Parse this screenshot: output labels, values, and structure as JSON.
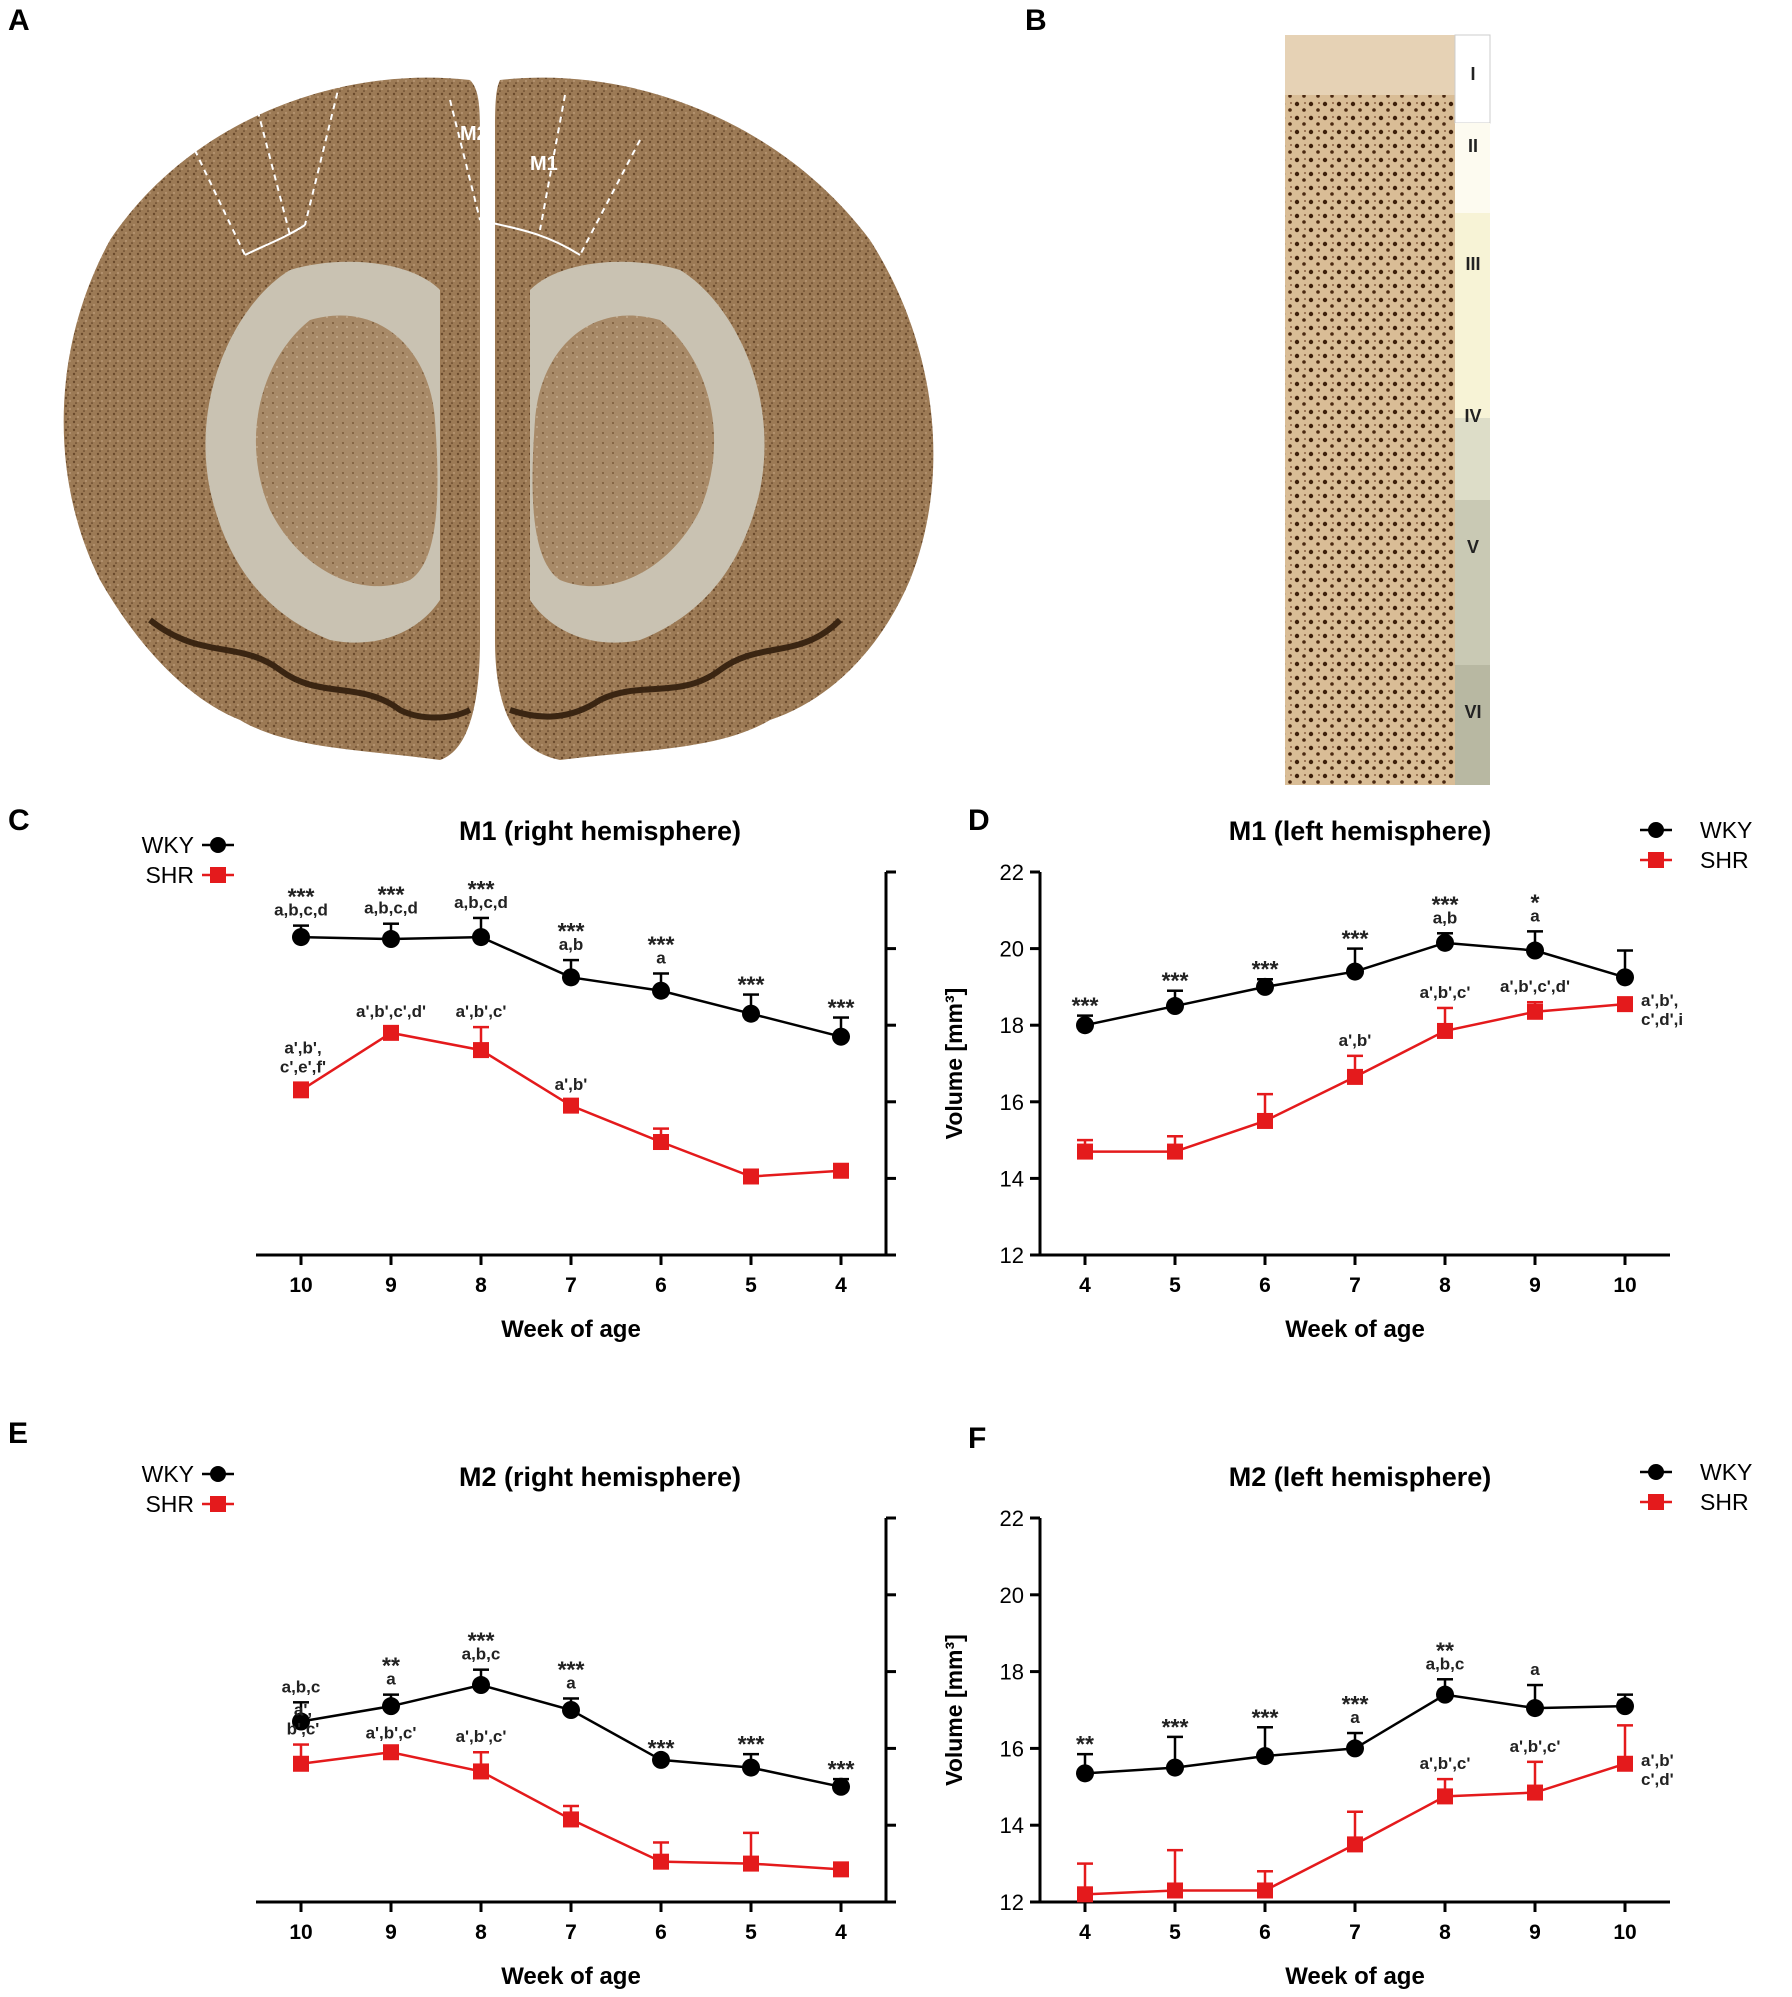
{
  "panels": {
    "a": "A",
    "b": "B",
    "c": "C",
    "d": "D",
    "e": "E",
    "f": "F"
  },
  "image_a": {
    "labels": {
      "m2": "M2",
      "m1": "M1"
    }
  },
  "image_b": {
    "layers": [
      "I",
      "II",
      "III",
      "IV",
      "V",
      "VI"
    ]
  },
  "colors": {
    "wky": "#000000",
    "shr": "#e41a1c"
  },
  "chart_data": [
    {
      "id": "c",
      "type": "line",
      "title": "M1 (right hemisphere)",
      "xlabel": "Week of age",
      "ylabel": "",
      "y_axis_side": "right",
      "categories": [
        "10",
        "9",
        "8",
        "7",
        "6",
        "5",
        "4"
      ],
      "ylim": [
        12,
        22
      ],
      "yticks": [
        12,
        14,
        16,
        18,
        20,
        22
      ],
      "legend": "top-left",
      "series": [
        {
          "name": "WKY",
          "marker": "circle",
          "values": [
            20.3,
            20.25,
            20.3,
            19.25,
            18.9,
            18.3,
            17.7
          ],
          "errors": [
            0.3,
            0.4,
            0.5,
            0.45,
            0.45,
            0.5,
            0.5
          ],
          "annotations": [
            [
              "***",
              "a,b,c,d"
            ],
            [
              "***",
              "a,b,c,d"
            ],
            [
              "***",
              "a,b,c,d"
            ],
            [
              "***",
              "a,b"
            ],
            [
              "***",
              "a"
            ],
            [
              "***"
            ],
            [
              "***"
            ]
          ]
        },
        {
          "name": "SHR",
          "marker": "square",
          "values": [
            16.3,
            17.8,
            17.35,
            15.9,
            14.95,
            14.05,
            14.2
          ],
          "errors": [
            0.2,
            0.15,
            0.6,
            0.15,
            0.35,
            0.05,
            0.05
          ],
          "annotations": [
            [
              "a',b',",
              "c',e',f'"
            ],
            [
              "a',b',c',d'"
            ],
            [
              "a',b',c'"
            ],
            [
              "a',b'"
            ],
            [],
            [],
            []
          ]
        }
      ]
    },
    {
      "id": "d",
      "type": "line",
      "title": "M1 (left hemisphere)",
      "xlabel": "Week of age",
      "ylabel": "Volume [mm³]",
      "y_axis_side": "left",
      "categories": [
        "4",
        "5",
        "6",
        "7",
        "8",
        "9",
        "10"
      ],
      "ylim": [
        12,
        22
      ],
      "yticks": [
        12,
        14,
        16,
        18,
        20,
        22
      ],
      "legend": "top-right",
      "series": [
        {
          "name": "WKY",
          "marker": "circle",
          "values": [
            18.0,
            18.5,
            19.0,
            19.4,
            20.15,
            19.95,
            19.25
          ],
          "errors": [
            0.25,
            0.4,
            0.2,
            0.6,
            0.25,
            0.5,
            0.7
          ],
          "annotations": [
            [
              "***"
            ],
            [
              "***"
            ],
            [
              "***"
            ],
            [
              "***"
            ],
            [
              "***",
              "a,b"
            ],
            [
              "*",
              "a"
            ],
            []
          ]
        },
        {
          "name": "SHR",
          "marker": "square",
          "values": [
            14.7,
            14.7,
            15.5,
            16.65,
            17.85,
            18.35,
            18.55
          ],
          "errors": [
            0.3,
            0.4,
            0.7,
            0.55,
            0.6,
            0.25,
            0.1
          ],
          "annotations": [
            [],
            [],
            [],
            [
              "a',b'"
            ],
            [
              "a',b',c'"
            ],
            [
              "a',b',c',d'"
            ],
            [
              "a',b',",
              "c',d',i"
            ]
          ]
        }
      ]
    },
    {
      "id": "e",
      "type": "line",
      "title": "M2 (right hemisphere)",
      "xlabel": "Week of age",
      "ylabel": "",
      "y_axis_side": "right",
      "categories": [
        "10",
        "9",
        "8",
        "7",
        "6",
        "5",
        "4"
      ],
      "ylim": [
        12,
        22
      ],
      "yticks": [
        12,
        14,
        16,
        18,
        20,
        22
      ],
      "legend": "top-left",
      "series": [
        {
          "name": "WKY",
          "marker": "circle",
          "values": [
            16.7,
            17.1,
            17.65,
            17.0,
            15.7,
            15.5,
            15.0
          ],
          "errors": [
            0.5,
            0.3,
            0.4,
            0.3,
            0.05,
            0.35,
            0.2
          ],
          "annotations": [
            [
              "a,b,c"
            ],
            [
              "**",
              "a"
            ],
            [
              "***",
              "a,b,c"
            ],
            [
              "***",
              "a"
            ],
            [
              "***"
            ],
            [
              "***"
            ],
            [
              "***"
            ]
          ]
        },
        {
          "name": "SHR",
          "marker": "square",
          "values": [
            15.6,
            15.9,
            15.4,
            14.15,
            13.05,
            13.0,
            12.85
          ],
          "errors": [
            0.5,
            0.1,
            0.5,
            0.35,
            0.5,
            0.8,
            0.05
          ],
          "annotations": [
            [
              "a',",
              "b',c'"
            ],
            [
              "a',b',c'"
            ],
            [
              "a',b',c'"
            ],
            [],
            [],
            [],
            []
          ]
        }
      ]
    },
    {
      "id": "f",
      "type": "line",
      "title": "M2 (left hemisphere)",
      "xlabel": "Week of age",
      "ylabel": "Volume [mm³]",
      "y_axis_side": "left",
      "categories": [
        "4",
        "5",
        "6",
        "7",
        "8",
        "9",
        "10"
      ],
      "ylim": [
        12,
        22
      ],
      "yticks": [
        12,
        14,
        16,
        18,
        20,
        22
      ],
      "legend": "top-right",
      "series": [
        {
          "name": "WKY",
          "marker": "circle",
          "values": [
            15.35,
            15.5,
            15.8,
            16.0,
            17.4,
            17.05,
            17.1
          ],
          "errors": [
            0.5,
            0.8,
            0.75,
            0.4,
            0.4,
            0.6,
            0.3
          ],
          "annotations": [
            [
              "**"
            ],
            [
              "***"
            ],
            [
              "***"
            ],
            [
              "***",
              "a"
            ],
            [
              "**",
              "a,b,c"
            ],
            [
              "a"
            ],
            []
          ]
        },
        {
          "name": "SHR",
          "marker": "square",
          "values": [
            12.2,
            12.3,
            12.3,
            13.5,
            14.75,
            14.85,
            15.6
          ],
          "errors": [
            0.8,
            1.05,
            0.5,
            0.85,
            0.45,
            0.8,
            1.0
          ],
          "annotations": [
            [],
            [],
            [],
            [],
            [
              "a',b',c'"
            ],
            [
              "a',b',c'"
            ],
            [
              "a',b'",
              "c',d'"
            ]
          ]
        }
      ]
    }
  ]
}
